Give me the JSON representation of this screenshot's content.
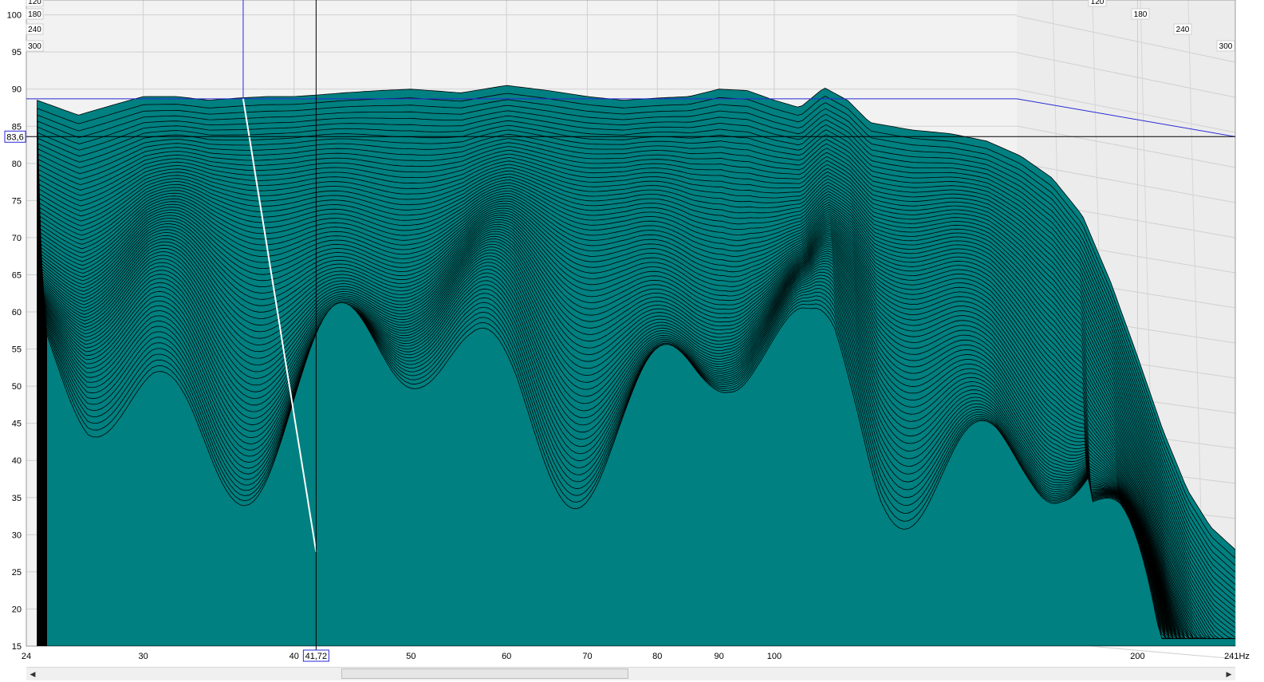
{
  "chart_data": {
    "type": "area",
    "view": "waterfall-3d",
    "title": "",
    "xlabel": "",
    "ylabel": "",
    "x_scale": "log",
    "x_unit": "Hz",
    "xlim": [
      24,
      241
    ],
    "ylim": [
      15,
      102
    ],
    "x_ticks": [
      24,
      30,
      40,
      50,
      60,
      70,
      80,
      90,
      100,
      200
    ],
    "x_end_label": "241Hz",
    "y_ticks": [
      100,
      95,
      90,
      85,
      80,
      75,
      70,
      65,
      60,
      55,
      50,
      45,
      40,
      35,
      30,
      25,
      20,
      15
    ],
    "time_axis_labels": [
      "120",
      "180",
      "240",
      "300"
    ],
    "grid": true,
    "fill_color": "#008080",
    "outline_color": "#000000",
    "slices_drawn": 70,
    "series": [
      {
        "name": "",
        "x": [
          24.5,
          26.5,
          28.5,
          30,
          32,
          34,
          36,
          38,
          40,
          41.72,
          44,
          47,
          50,
          55,
          60,
          65,
          70,
          75,
          80,
          85,
          90,
          95,
          100,
          105,
          110,
          115,
          120,
          130,
          140,
          150,
          160,
          170,
          180,
          190,
          200,
          210,
          220,
          230,
          241
        ],
        "values": [
          88.5,
          86.5,
          88.0,
          89.0,
          89.0,
          88.5,
          88.8,
          89.0,
          89.0,
          89.2,
          89.5,
          89.8,
          90.0,
          89.5,
          90.5,
          89.8,
          89.0,
          88.5,
          88.8,
          89.0,
          90.0,
          89.8,
          88.5,
          87.5,
          90.2,
          88.5,
          85.5,
          84.5,
          84.0,
          83.0,
          81.0,
          78.0,
          73.0,
          64.0,
          54.0,
          44.0,
          36.0,
          31.0,
          28.0
        ]
      }
    ],
    "cursor": {
      "x_label": "41,72",
      "y_label": "83,6",
      "x": 41.72,
      "y": 83.6
    },
    "reference_level": 88.7,
    "reference_freq": 36.3
  }
}
